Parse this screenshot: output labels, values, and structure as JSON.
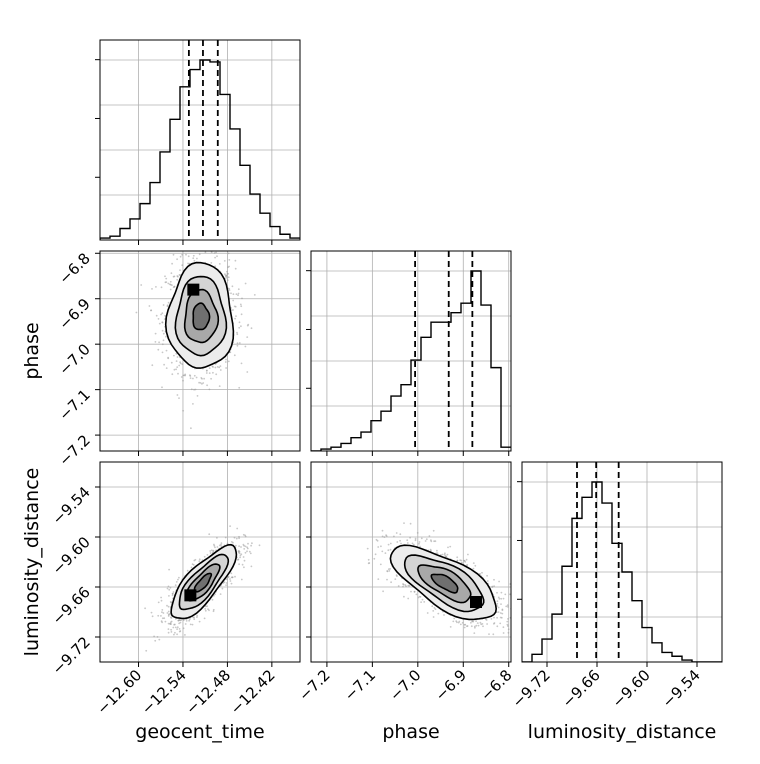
{
  "chart_data": {
    "type": "corner",
    "parameters": [
      {
        "key": "geocent_time",
        "label": "geocent_time",
        "range": [
          -12.652,
          -12.382
        ],
        "ticks": [
          -12.6,
          -12.54,
          -12.48,
          -12.42
        ],
        "tick_labels": [
          "−12.60",
          "−12.54",
          "−12.48",
          "−12.42"
        ],
        "quantiles": [
          -12.532,
          -12.513,
          -12.493
        ]
      },
      {
        "key": "phase",
        "label": "phase",
        "range": [
          -7.235,
          -6.795
        ],
        "ticks": [
          -7.2,
          -7.1,
          -7.0,
          -6.9,
          -6.8
        ],
        "tick_labels": [
          "−7.2",
          "−7.1",
          "−7.0",
          "−6.9",
          "−6.8"
        ],
        "quantiles": [
          -7.006,
          -6.932,
          -6.88
        ]
      },
      {
        "key": "luminosity_distance",
        "label": "luminosity_distance",
        "range": [
          -9.75,
          -9.51
        ],
        "ticks": [
          -9.72,
          -9.66,
          -9.6,
          -9.54
        ],
        "tick_labels": [
          "−9.72",
          "−9.66",
          "−9.60",
          "−9.54"
        ],
        "quantiles": [
          -9.684,
          -9.661,
          -9.634
        ]
      }
    ],
    "histograms": [
      {
        "param": "geocent_time",
        "bin_edges": [
          -12.652,
          -12.6385,
          -12.625,
          -12.6115,
          -12.598,
          -12.5845,
          -12.571,
          -12.5575,
          -12.544,
          -12.5305,
          -12.517,
          -12.5035,
          -12.49,
          -12.4765,
          -12.463,
          -12.4495,
          -12.436,
          -12.4225,
          -12.409,
          -12.3955,
          -12.382
        ],
        "counts": [
          1,
          2,
          6,
          11,
          19,
          30,
          46,
          63,
          80,
          89,
          94,
          93,
          76,
          58,
          39,
          24,
          14,
          7,
          3,
          1
        ]
      },
      {
        "param": "phase",
        "bin_edges": [
          -7.235,
          -7.213,
          -7.191,
          -7.169,
          -7.147,
          -7.125,
          -7.103,
          -7.081,
          -7.059,
          -7.037,
          -7.015,
          -6.993,
          -6.971,
          -6.949,
          -6.927,
          -6.905,
          -6.883,
          -6.861,
          -6.839,
          -6.817,
          -6.795
        ],
        "counts": [
          0,
          1,
          2,
          4,
          7,
          10,
          16,
          21,
          29,
          35,
          48,
          60,
          68,
          68,
          73,
          78,
          95,
          77,
          44,
          2
        ]
      },
      {
        "param": "luminosity_distance",
        "bin_edges": [
          -9.75,
          -9.738,
          -9.726,
          -9.714,
          -9.702,
          -9.69,
          -9.678,
          -9.666,
          -9.654,
          -9.642,
          -9.63,
          -9.618,
          -9.606,
          -9.594,
          -9.582,
          -9.57,
          -9.558,
          -9.546,
          -9.534,
          -9.522,
          -9.51
        ],
        "counts": [
          0,
          4,
          12,
          25,
          50,
          75,
          86,
          94,
          83,
          62,
          47,
          32,
          18,
          10,
          5,
          3,
          1,
          0,
          0,
          0
        ]
      }
    ],
    "pairs": [
      {
        "x": "geocent_time",
        "y": "phase",
        "mean": [
          -12.516,
          -6.94
        ],
        "sigma": [
          0.022,
          0.058
        ],
        "rho": 0.0,
        "mode": [
          -12.526,
          -6.88
        ]
      },
      {
        "x": "geocent_time",
        "y": "luminosity_distance",
        "mean": [
          -12.513,
          -9.655
        ],
        "sigma": [
          0.022,
          0.022
        ],
        "rho": 0.78,
        "mode": [
          -12.53,
          -9.67
        ]
      },
      {
        "x": "phase",
        "y": "luminosity_distance",
        "mean": [
          -6.94,
          -9.655
        ],
        "sigma": [
          0.058,
          0.022
        ],
        "rho": -0.68,
        "mode": [
          -6.872,
          -9.678
        ]
      }
    ],
    "contour_levels_sigma": [
      0.5,
      1.0,
      1.5,
      2.0
    ],
    "grid": true,
    "colors": {
      "line": "#000000",
      "grid": "#b0b0b0",
      "samples": "#9a9a9a"
    }
  }
}
